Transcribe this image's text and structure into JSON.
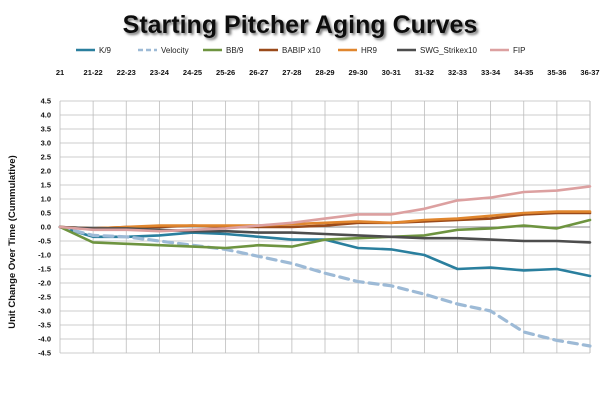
{
  "chart_data": {
    "type": "line",
    "title": "Starting Pitcher Aging Curves",
    "ylabel": "Unit Change Over Time (Cummulative)",
    "xlabel": "",
    "categories": [
      "21",
      "21-22",
      "22-23",
      "23-24",
      "24-25",
      "25-26",
      "26-27",
      "27-28",
      "28-29",
      "29-30",
      "30-31",
      "31-32",
      "32-33",
      "33-34",
      "34-35",
      "35-36",
      "36-37"
    ],
    "ylim": [
      -4.5,
      4.5
    ],
    "ytick_step": 0.5,
    "grid": true,
    "legend_position": "top",
    "series": [
      {
        "name": "K/9",
        "color": "#2a7f9e",
        "dash": "solid",
        "values": [
          0,
          -0.35,
          -0.35,
          -0.3,
          -0.2,
          -0.25,
          -0.35,
          -0.45,
          -0.45,
          -0.75,
          -0.8,
          -1.0,
          -1.5,
          -1.45,
          -1.55,
          -1.5,
          -1.75
        ]
      },
      {
        "name": "Velocity",
        "color": "#9dbad6",
        "dash": "dashed",
        "values": [
          0,
          -0.3,
          -0.35,
          -0.5,
          -0.65,
          -0.8,
          -1.05,
          -1.3,
          -1.65,
          -1.95,
          -2.1,
          -2.4,
          -2.75,
          -3.0,
          -3.75,
          -4.05,
          -4.25
        ]
      },
      {
        "name": "BB/9",
        "color": "#6e9440",
        "dash": "solid",
        "values": [
          0,
          -0.55,
          -0.6,
          -0.65,
          -0.7,
          -0.75,
          -0.65,
          -0.7,
          -0.45,
          -0.4,
          -0.35,
          -0.3,
          -0.1,
          -0.05,
          0.05,
          -0.05,
          0.25
        ]
      },
      {
        "name": "BABIP x10",
        "color": "#9a4a1a",
        "dash": "solid",
        "values": [
          0,
          -0.05,
          0.0,
          0.0,
          0.05,
          0.0,
          0.0,
          0.0,
          0.05,
          0.15,
          0.15,
          0.2,
          0.25,
          0.3,
          0.45,
          0.5,
          0.5
        ]
      },
      {
        "name": "HR9",
        "color": "#e0862e",
        "dash": "solid",
        "values": [
          0,
          -0.05,
          0.0,
          0.05,
          0.05,
          0.05,
          0.05,
          0.1,
          0.15,
          0.2,
          0.15,
          0.25,
          0.3,
          0.4,
          0.5,
          0.55,
          0.55
        ]
      },
      {
        "name": "SWG_Strikex10",
        "color": "#4d4d4d",
        "dash": "solid",
        "values": [
          0,
          -0.05,
          -0.05,
          -0.1,
          -0.15,
          -0.15,
          -0.2,
          -0.2,
          -0.25,
          -0.3,
          -0.35,
          -0.4,
          -0.4,
          -0.45,
          -0.5,
          -0.5,
          -0.55
        ]
      },
      {
        "name": "FIP",
        "color": "#dca0a0",
        "dash": "solid",
        "values": [
          0,
          -0.1,
          -0.1,
          -0.15,
          -0.1,
          -0.05,
          0.05,
          0.15,
          0.3,
          0.45,
          0.45,
          0.65,
          0.95,
          1.05,
          1.25,
          1.3,
          1.45
        ]
      }
    ]
  }
}
